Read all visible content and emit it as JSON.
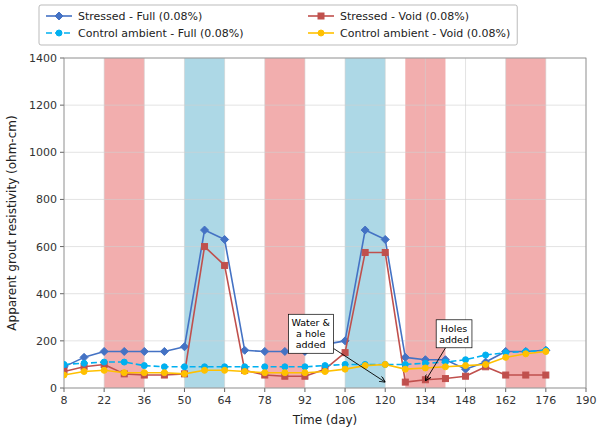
{
  "chart_data": {
    "type": "line",
    "xlabel": "Time (day)",
    "ylabel": "Apparent grout resistivity (ohm-cm)",
    "xlim": [
      8,
      190
    ],
    "ylim": [
      0,
      1400
    ],
    "xticks": [
      8,
      22,
      36,
      50,
      64,
      78,
      92,
      106,
      120,
      134,
      148,
      162,
      176,
      190
    ],
    "yticks": [
      0,
      200,
      400,
      600,
      800,
      1000,
      1200,
      1400
    ],
    "grid": true,
    "legend": "top",
    "bands": [
      {
        "start": 22,
        "end": 36,
        "color": "#F2AEAE"
      },
      {
        "start": 78,
        "end": 92,
        "color": "#F2AEAE"
      },
      {
        "start": 127,
        "end": 141,
        "color": "#F2AEAE"
      },
      {
        "start": 162,
        "end": 176,
        "color": "#F2AEAE"
      },
      {
        "start": 50,
        "end": 64,
        "color": "#ADD8E6"
      },
      {
        "start": 106,
        "end": 120,
        "color": "#ADD8E6"
      }
    ],
    "x": [
      8,
      15,
      22,
      29,
      36,
      43,
      50,
      57,
      64,
      71,
      78,
      85,
      92,
      99,
      106,
      113,
      120,
      127,
      134,
      141,
      148,
      155,
      162,
      169,
      176
    ],
    "series": [
      {
        "name": "Stressed - Full (0.08%)",
        "color": "#4472C4",
        "marker": "diamond",
        "line_style": "solid",
        "values": [
          90,
          130,
          155,
          155,
          155,
          155,
          175,
          670,
          630,
          160,
          155,
          155,
          155,
          185,
          200,
          670,
          630,
          130,
          120,
          120,
          80,
          110,
          155,
          155,
          160
        ]
      },
      {
        "name": "Stressed - Void (0.08%)",
        "color": "#C0504D",
        "marker": "square",
        "line_style": "solid",
        "values": [
          70,
          90,
          100,
          60,
          55,
          55,
          60,
          600,
          520,
          75,
          55,
          50,
          50,
          80,
          150,
          575,
          575,
          25,
          35,
          40,
          50,
          90,
          55,
          55,
          55
        ]
      },
      {
        "name": "Control ambient - Full (0.08%)",
        "color": "#00B0F0",
        "marker": "circle",
        "line_style": "dashed",
        "values": [
          100,
          105,
          110,
          110,
          95,
          90,
          90,
          90,
          90,
          90,
          90,
          90,
          90,
          95,
          100,
          100,
          100,
          100,
          105,
          110,
          120,
          140,
          150,
          155,
          160
        ]
      },
      {
        "name": "Control ambient - Void (0.08%)",
        "color": "#FFC000",
        "marker": "circle",
        "line_style": "solid",
        "values": [
          55,
          70,
          75,
          65,
          65,
          65,
          60,
          75,
          75,
          70,
          65,
          65,
          65,
          70,
          80,
          95,
          100,
          80,
          85,
          90,
          95,
          100,
          130,
          145,
          155
        ]
      }
    ],
    "annotations": [
      {
        "text": "Water &\na hole\nadded",
        "xy": [
          120,
          25
        ],
        "xytext": [
          94,
          230
        ]
      },
      {
        "text": "Holes\nadded",
        "xy": [
          134,
          30
        ],
        "xytext": [
          144,
          230
        ]
      }
    ]
  }
}
